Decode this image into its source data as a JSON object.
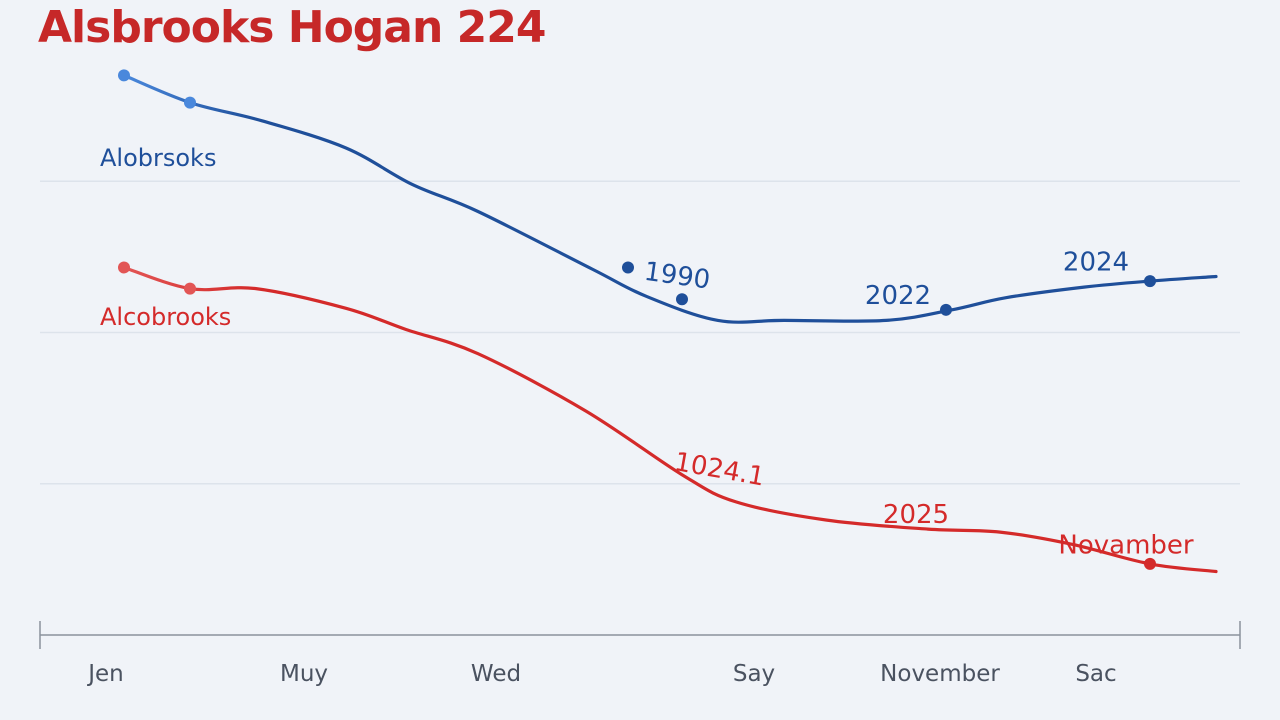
{
  "title": "Alsbrooks Hogan 224",
  "colors": {
    "title": "#c62828",
    "blue": "#1f4f9a",
    "blue_light": "#4a88dc",
    "red": "#d42a2a",
    "red_light": "#e25555",
    "grid": "#dde3eb",
    "axis": "#8a929c",
    "tick_text": "#4a5260",
    "background": "#f0f3f8"
  },
  "chart_data": {
    "type": "line",
    "title": "Alsbrooks Hogan 224",
    "xlabel": "",
    "ylabel": "",
    "categories": [
      "Jen",
      "Muy",
      "Wed",
      "Say",
      "November",
      "Sac"
    ],
    "x_range": [
      0,
      20
    ],
    "y_range": [
      0,
      4
    ],
    "category_positions": [
      1.1,
      4.4,
      7.6,
      11.9,
      15.0,
      17.6
    ],
    "grid": true,
    "series": [
      {
        "name": "Alobrsoks",
        "color": "#1f4f9a",
        "label": "Alobrsoks",
        "points": [
          {
            "x": 1.4,
            "y": 3.7
          },
          {
            "x": 2.5,
            "y": 3.52
          },
          {
            "x": 3.7,
            "y": 3.4
          },
          {
            "x": 5.1,
            "y": 3.22
          },
          {
            "x": 6.2,
            "y": 2.98
          },
          {
            "x": 7.3,
            "y": 2.8
          },
          {
            "x": 9.2,
            "y": 2.42
          },
          {
            "x": 10.1,
            "y": 2.24
          },
          {
            "x": 11.3,
            "y": 2.08
          },
          {
            "x": 12.4,
            "y": 2.08
          },
          {
            "x": 14.1,
            "y": 2.08
          },
          {
            "x": 15.2,
            "y": 2.15
          },
          {
            "x": 16.1,
            "y": 2.23
          },
          {
            "x": 17.4,
            "y": 2.3
          },
          {
            "x": 18.5,
            "y": 2.34
          },
          {
            "x": 19.6,
            "y": 2.37
          }
        ],
        "markers": [
          {
            "x": 1.4,
            "y": 3.7
          },
          {
            "x": 2.5,
            "y": 3.52
          },
          {
            "x": 9.8,
            "y": 2.43
          },
          {
            "x": 10.7,
            "y": 2.22
          },
          {
            "x": 15.1,
            "y": 2.15
          },
          {
            "x": 18.5,
            "y": 2.34
          }
        ],
        "annotations": [
          {
            "text": "1990",
            "x": 10.6,
            "y": 2.32
          },
          {
            "text": "2022",
            "x": 14.3,
            "y": 2.19
          },
          {
            "text": "2024",
            "x": 17.6,
            "y": 2.41
          }
        ]
      },
      {
        "name": "Alcobrooks",
        "color": "#d42a2a",
        "label": "Alcobrooks",
        "points": [
          {
            "x": 1.4,
            "y": 2.43
          },
          {
            "x": 2.5,
            "y": 2.29
          },
          {
            "x": 3.6,
            "y": 2.29
          },
          {
            "x": 5.1,
            "y": 2.16
          },
          {
            "x": 6.1,
            "y": 2.02
          },
          {
            "x": 7.3,
            "y": 1.86
          },
          {
            "x": 9.1,
            "y": 1.48
          },
          {
            "x": 10.7,
            "y": 1.06
          },
          {
            "x": 11.6,
            "y": 0.88
          },
          {
            "x": 13.1,
            "y": 0.76
          },
          {
            "x": 14.8,
            "y": 0.7
          },
          {
            "x": 16.0,
            "y": 0.68
          },
          {
            "x": 17.2,
            "y": 0.6
          },
          {
            "x": 18.5,
            "y": 0.47
          },
          {
            "x": 19.6,
            "y": 0.42
          }
        ],
        "markers": [
          {
            "x": 1.4,
            "y": 2.43
          },
          {
            "x": 2.5,
            "y": 2.29
          },
          {
            "x": 18.5,
            "y": 0.47
          }
        ],
        "annotations": [
          {
            "text": "1024.1",
            "x": 11.3,
            "y": 1.04
          },
          {
            "text": "2025",
            "x": 14.6,
            "y": 0.74
          },
          {
            "text": "Novamber",
            "x": 18.1,
            "y": 0.54
          }
        ]
      }
    ]
  }
}
